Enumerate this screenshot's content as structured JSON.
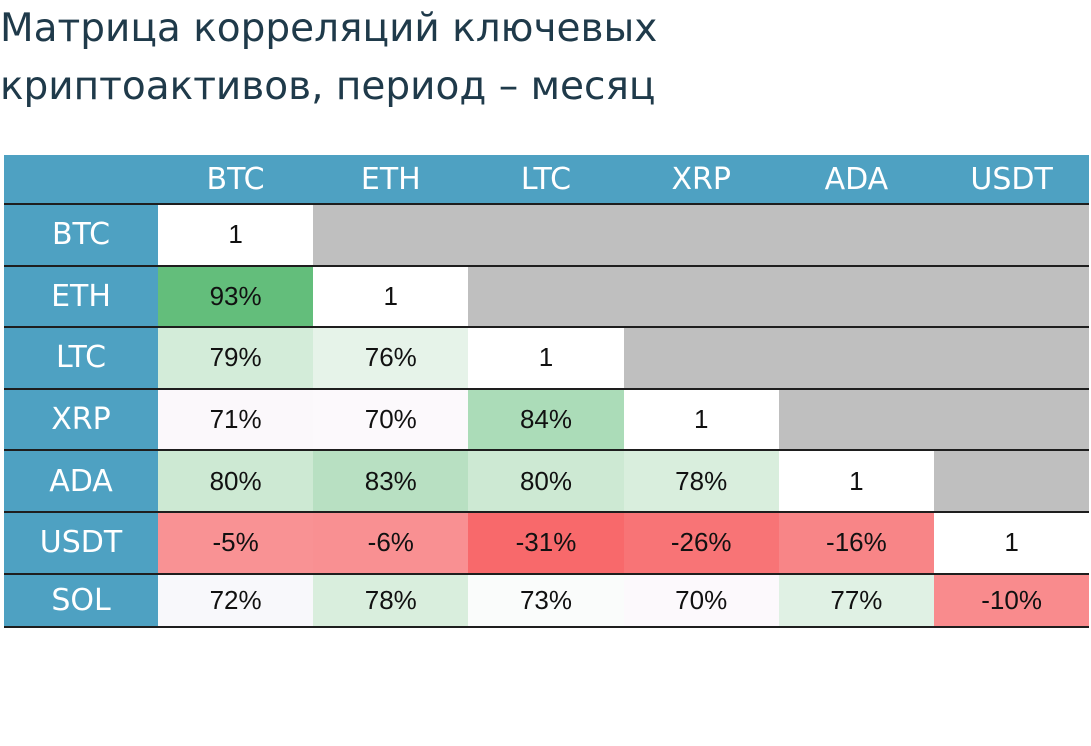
{
  "title": {
    "line1": "Матрица корреляций ключевых",
    "line2": "криптоактивов, период – месяц"
  },
  "colors": {
    "header_bg": "#4ea1c2",
    "header_text": "#ffffff",
    "masked": "#bfbfbf",
    "diagonal": "#ffffff"
  },
  "chart_data": {
    "type": "heatmap",
    "title": "Матрица корреляций ключевых криптоактивов, период – месяц",
    "columns": [
      "BTC",
      "ETH",
      "LTC",
      "XRP",
      "ADA",
      "USDT"
    ],
    "rows": [
      "BTC",
      "ETH",
      "LTC",
      "XRP",
      "ADA",
      "USDT",
      "SOL"
    ],
    "labels": [
      [
        "1",
        null,
        null,
        null,
        null,
        null
      ],
      [
        "93%",
        "1",
        null,
        null,
        null,
        null
      ],
      [
        "79%",
        "76%",
        "1",
        null,
        null,
        null
      ],
      [
        "71%",
        "70%",
        "84%",
        "1",
        null,
        null
      ],
      [
        "80%",
        "83%",
        "80%",
        "78%",
        "1",
        null
      ],
      [
        "-5%",
        "-6%",
        "-31%",
        "-26%",
        "-16%",
        "1"
      ],
      [
        "72%",
        "78%",
        "73%",
        "70%",
        "77%",
        "-10%"
      ]
    ],
    "values": [
      [
        1,
        null,
        null,
        null,
        null,
        null
      ],
      [
        0.93,
        1,
        null,
        null,
        null,
        null
      ],
      [
        0.79,
        0.76,
        1,
        null,
        null,
        null
      ],
      [
        0.71,
        0.7,
        0.84,
        1,
        null,
        null
      ],
      [
        0.8,
        0.83,
        0.8,
        0.78,
        1,
        null
      ],
      [
        -0.05,
        -0.06,
        -0.31,
        -0.26,
        -0.16,
        1
      ],
      [
        0.72,
        0.78,
        0.73,
        0.7,
        0.77,
        -0.1
      ]
    ],
    "fill_colors": [
      [
        "#ffffff",
        null,
        null,
        null,
        null,
        null
      ],
      [
        "#63be7b",
        "#ffffff",
        null,
        null,
        null,
        null
      ],
      [
        "#d3ecd9",
        "#e6f3e9",
        "#ffffff",
        null,
        null,
        null
      ],
      [
        "#fbf8fb",
        "#fcf9fc",
        "#abdcb8",
        "#ffffff",
        null,
        null
      ],
      [
        "#cde9d3",
        "#b8e0c2",
        "#cde9d3",
        "#d9eedd",
        "#ffffff",
        null
      ],
      [
        "#f99294",
        "#f99092",
        "#f8696b",
        "#f87476",
        "#f88587",
        "#ffffff"
      ],
      [
        "#f8f8fb",
        "#d9eedd",
        "#fafcfb",
        "#fcf9fc",
        "#e0f1e4",
        "#f98b8d"
      ]
    ]
  }
}
